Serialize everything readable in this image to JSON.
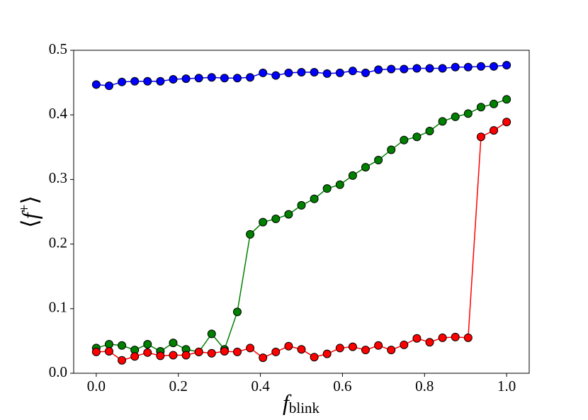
{
  "chart_data": {
    "type": "line",
    "xlabel": {
      "main": "f",
      "sub": "blink"
    },
    "ylabel": {
      "open": "⟨",
      "main": "f",
      "sup": "+",
      "close": "⟩"
    },
    "x": [
      0,
      0.03125,
      0.0625,
      0.09375,
      0.125,
      0.15625,
      0.1875,
      0.21875,
      0.25,
      0.28125,
      0.3125,
      0.34375,
      0.375,
      0.40625,
      0.4375,
      0.46875,
      0.5,
      0.53125,
      0.5625,
      0.59375,
      0.625,
      0.65625,
      0.6875,
      0.71875,
      0.75,
      0.78125,
      0.8125,
      0.84375,
      0.875,
      0.90625,
      0.9375,
      0.96875,
      1.0
    ],
    "series": [
      {
        "color": "#0000ff",
        "values": [
          0.447,
          0.445,
          0.451,
          0.452,
          0.452,
          0.452,
          0.455,
          0.456,
          0.457,
          0.458,
          0.457,
          0.457,
          0.458,
          0.465,
          0.461,
          0.465,
          0.466,
          0.466,
          0.464,
          0.465,
          0.468,
          0.465,
          0.47,
          0.471,
          0.471,
          0.472,
          0.472,
          0.472,
          0.474,
          0.474,
          0.475,
          0.475,
          0.477
        ]
      },
      {
        "color": "#008000",
        "values": [
          0.039,
          0.045,
          0.043,
          0.036,
          0.045,
          0.034,
          0.047,
          0.037,
          0.033,
          0.061,
          0.037,
          0.095,
          0.215,
          0.234,
          0.239,
          0.246,
          0.26,
          0.27,
          0.286,
          0.292,
          0.306,
          0.319,
          0.33,
          0.346,
          0.361,
          0.366,
          0.375,
          0.39,
          0.397,
          0.402,
          0.412,
          0.417,
          0.424
        ]
      },
      {
        "color": "#ff0000",
        "values": [
          0.033,
          0.034,
          0.02,
          0.026,
          0.032,
          0.027,
          0.028,
          0.028,
          0.033,
          0.031,
          0.034,
          0.033,
          0.039,
          0.024,
          0.033,
          0.042,
          0.037,
          0.025,
          0.03,
          0.039,
          0.041,
          0.036,
          0.043,
          0.036,
          0.044,
          0.054,
          0.048,
          0.055,
          0.056,
          0.055,
          0.366,
          0.376,
          0.389
        ]
      }
    ],
    "xlim": [
      -0.055,
      1.055
    ],
    "xticks": [
      {
        "value": 0,
        "label": "0.0"
      },
      0.2,
      0.4,
      0.6,
      0.8,
      {
        "value": 1,
        "label": "1.0"
      }
    ],
    "ylim": [
      0,
      0.5
    ],
    "yticks": [
      {
        "value": 0,
        "label": "0.0"
      },
      0.1,
      0.2,
      0.3,
      0.4,
      {
        "value": 0.5,
        "label": "0.5"
      }
    ],
    "marker_edge": "#000000"
  }
}
